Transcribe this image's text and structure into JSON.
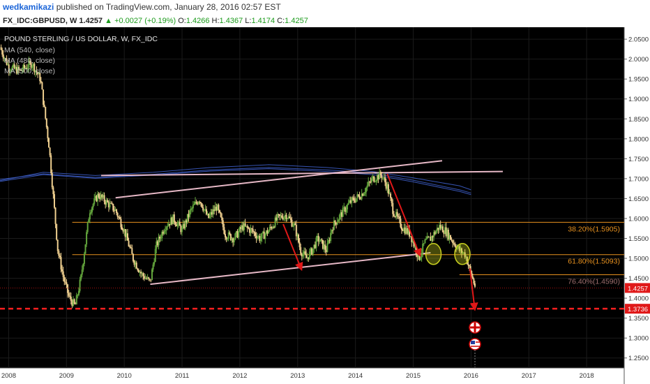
{
  "header": {
    "author": "wedkamikazi",
    "published": "published on TradingView.com, January 28, 2016 02:57 EST"
  },
  "quote": {
    "symbol": "FX_IDC:GBPUSD, W",
    "last": "1.4257",
    "change": "▲ +0.0027 (+0.19%)",
    "open_label": "O:",
    "open": "1.4266",
    "high_label": "H:",
    "high": "1.4367",
    "low_label": "L:",
    "low": "1.4174",
    "close_label": "C:",
    "close": "1.4257"
  },
  "legend": {
    "title": "POUND STERLING / US DOLLAR, W, FX_IDC",
    "ma1": "MA (540, close)",
    "ma2": "MA (480, close)",
    "ma3": "MA (500, close)"
  },
  "colors": {
    "background": "#000000",
    "grid": "#1b1b1b",
    "fib": "#e8921f",
    "trend": "#e6b8c6",
    "ma": "#3c5cc4",
    "arrow": "#e01818",
    "support": "#ff1f1f",
    "candle_up": "#63a53c",
    "candle_down": "#f0d090",
    "price_tag": "#e01818"
  },
  "chart_data": {
    "type": "line",
    "title": "POUND STERLING / US DOLLAR, W, FX_IDC",
    "x_ticks": [
      "2008",
      "2009",
      "2010",
      "2011",
      "2012",
      "2013",
      "2014",
      "2015",
      "2016",
      "2017",
      "2018"
    ],
    "y_ticks": [
      "2.0500",
      "2.0000",
      "1.9500",
      "1.9000",
      "1.8500",
      "1.8000",
      "1.7500",
      "1.7000",
      "1.6500",
      "1.6000",
      "1.5500",
      "1.5000",
      "1.4500",
      "1.4000",
      "1.3500",
      "1.3000",
      "1.2500"
    ],
    "ylim": [
      1.225,
      2.08
    ],
    "xlim": [
      2007.85,
      2018.65
    ],
    "price_series": {
      "name": "GBPUSD",
      "x": [
        2007.85,
        2008.0,
        2008.2,
        2008.4,
        2008.55,
        2008.7,
        2008.85,
        2008.95,
        2009.05,
        2009.15,
        2009.25,
        2009.4,
        2009.55,
        2009.7,
        2009.85,
        2010.0,
        2010.15,
        2010.3,
        2010.45,
        2010.55,
        2010.7,
        2010.85,
        2011.0,
        2011.15,
        2011.3,
        2011.45,
        2011.6,
        2011.75,
        2011.9,
        2012.05,
        2012.2,
        2012.35,
        2012.5,
        2012.65,
        2012.8,
        2012.95,
        2013.05,
        2013.15,
        2013.25,
        2013.35,
        2013.5,
        2013.6,
        2013.75,
        2013.9,
        2014.1,
        2014.3,
        2014.45,
        2014.55,
        2014.65,
        2014.8,
        2014.95,
        2015.1,
        2015.2,
        2015.3,
        2015.45,
        2015.55,
        2015.65,
        2015.8,
        2015.9,
        2015.98,
        2016.08
      ],
      "values": [
        2.03,
        1.98,
        1.97,
        1.99,
        1.95,
        1.78,
        1.52,
        1.45,
        1.4,
        1.38,
        1.45,
        1.62,
        1.66,
        1.64,
        1.62,
        1.57,
        1.5,
        1.46,
        1.44,
        1.53,
        1.58,
        1.6,
        1.57,
        1.62,
        1.65,
        1.6,
        1.63,
        1.56,
        1.55,
        1.58,
        1.57,
        1.55,
        1.57,
        1.6,
        1.61,
        1.58,
        1.52,
        1.5,
        1.52,
        1.55,
        1.52,
        1.58,
        1.61,
        1.64,
        1.66,
        1.7,
        1.71,
        1.68,
        1.62,
        1.58,
        1.56,
        1.5,
        1.54,
        1.55,
        1.58,
        1.57,
        1.55,
        1.52,
        1.51,
        1.47,
        1.4257
      ]
    },
    "moving_averages": [
      {
        "name": "MA (540, close)",
        "x": [
          2007.85,
          2008.6,
          2009.5,
          2010.5,
          2011.5,
          2012.5,
          2013.5,
          2014.3,
          2015.0,
          2015.8,
          2016.0
        ],
        "values": [
          1.695,
          1.716,
          1.708,
          1.716,
          1.728,
          1.735,
          1.728,
          1.718,
          1.702,
          1.682,
          1.672
        ]
      },
      {
        "name": "MA (480, close)",
        "x": [
          2007.85,
          2008.6,
          2009.5,
          2010.5,
          2011.5,
          2012.5,
          2013.5,
          2014.3,
          2015.0,
          2015.8,
          2016.0
        ],
        "values": [
          1.698,
          1.712,
          1.703,
          1.711,
          1.722,
          1.728,
          1.722,
          1.714,
          1.696,
          1.672,
          1.664
        ]
      },
      {
        "name": "MA (500, close)",
        "x": [
          2007.85,
          2008.6,
          2009.5,
          2010.5,
          2011.5,
          2012.5,
          2013.5,
          2014.3,
          2015.0,
          2015.8,
          2016.0
        ],
        "values": [
          1.693,
          1.71,
          1.701,
          1.709,
          1.719,
          1.725,
          1.718,
          1.71,
          1.692,
          1.668,
          1.66
        ]
      }
    ],
    "fib_levels": [
      {
        "label": "38.20%(1.5905)",
        "value": 1.5905,
        "from": 2009.1
      },
      {
        "label": "61.80%(1.5093)",
        "value": 1.5093,
        "from": 2009.1
      },
      {
        "label": "76.40%(1.4590)",
        "value": 1.459,
        "from": 2015.8
      }
    ],
    "trendlines": [
      {
        "x": [
          2009.6,
          2016.55
        ],
        "y": [
          1.708,
          1.718
        ]
      },
      {
        "x": [
          2009.85,
          2015.5
        ],
        "y": [
          1.652,
          1.745
        ]
      },
      {
        "x": [
          2010.45,
          2015.3
        ],
        "y": [
          1.435,
          1.514
        ]
      }
    ],
    "arrows": [
      {
        "x": [
          2012.75,
          2013.05
        ],
        "y": [
          1.586,
          1.478
        ]
      },
      {
        "x": [
          2014.55,
          2015.1
        ],
        "y": [
          1.712,
          1.513
        ]
      },
      {
        "x": [
          2015.98,
          2016.06
        ],
        "y": [
          1.475,
          1.378
        ]
      }
    ],
    "circles": [
      {
        "x": 2015.35,
        "y": 1.511
      },
      {
        "x": 2015.85,
        "y": 1.511
      }
    ],
    "support_level": {
      "value": 1.3736,
      "label": "1.3736"
    },
    "last_price": {
      "value": 1.4257,
      "label": "1.4257"
    }
  }
}
